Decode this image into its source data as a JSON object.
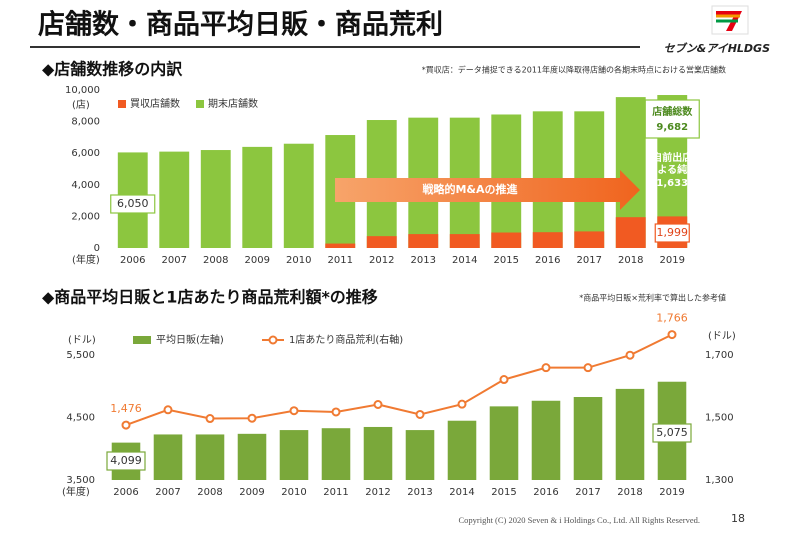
{
  "header": {
    "title": "店舗数・商品平均日販・商品荒利",
    "logo": "セブン&アイHLDGS"
  },
  "chart_data": [
    {
      "type": "bar",
      "title": "◆店舗数推移の内訳",
      "note": "*買収店：データ捕捉できる2011年度以降取得店舗の各期末時点における営業店舗数",
      "y_unit": "(店)",
      "x_unit": "(年度)",
      "categories": [
        "2006",
        "2007",
        "2008",
        "2009",
        "2010",
        "2011",
        "2012",
        "2013",
        "2014",
        "2015",
        "2016",
        "2017",
        "2018",
        "2019"
      ],
      "series": [
        {
          "name": "買収店舗数",
          "color": "#f15a22",
          "values": [
            0,
            0,
            0,
            0,
            0,
            280,
            750,
            880,
            880,
            980,
            1000,
            1050,
            1950,
            1999
          ],
          "value_labels": [
            null,
            null,
            null,
            null,
            null,
            null,
            null,
            null,
            null,
            null,
            null,
            null,
            null,
            "1,999"
          ]
        },
        {
          "name": "期末店舗数",
          "color": "#8cc63f",
          "values": [
            6050,
            6100,
            6200,
            6400,
            6600,
            7150,
            8100,
            8250,
            8250,
            8450,
            8650,
            8650,
            9550,
            9682
          ],
          "value_labels": [
            "6,050",
            null,
            null,
            null,
            null,
            null,
            null,
            null,
            null,
            null,
            null,
            null,
            null,
            "9,682"
          ]
        }
      ],
      "ylim": [
        0,
        10000
      ],
      "yticks": [
        0,
        {
          "value": 2000,
          "label": "2,000"
        },
        {
          "value": 4000,
          "label": "4,000"
        },
        {
          "value": 6000,
          "label": "6,000"
        },
        {
          "value": 8000,
          "label": "8,000"
        },
        {
          "value": 10000,
          "label": "10,000"
        }
      ],
      "grid": false,
      "annotations": {
        "arrow": "戦略的M&Aの推進",
        "total": "店舗総数",
        "net_increase": [
          "自前出店",
          "による純増"
        ],
        "net_increase_value": 1633,
        "net_increase_label": "1,633"
      }
    },
    {
      "type": "combo",
      "title": "◆商品平均日販と1店あたり商品荒利額*の推移",
      "note": "*商品平均日販×荒利率で算出した参考値",
      "y_unit": "(ドル)",
      "y2_unit": "(ドル)",
      "x_unit": "(年度)",
      "categories": [
        "2006",
        "2007",
        "2008",
        "2009",
        "2010",
        "2011",
        "2012",
        "2013",
        "2014",
        "2015",
        "2016",
        "2017",
        "2018",
        "2019"
      ],
      "series": [
        {
          "name": "平均日販(左軸)",
          "kind": "bar",
          "color": "#7aa83a",
          "values": [
            4099,
            4230,
            4230,
            4240,
            4300,
            4330,
            4350,
            4300,
            4450,
            4680,
            4770,
            4830,
            4960,
            5075
          ],
          "value_labels": [
            "4,099",
            null,
            null,
            null,
            null,
            null,
            null,
            null,
            null,
            null,
            null,
            null,
            null,
            "5,075"
          ]
        },
        {
          "name": "1店あたり商品荒利(右軸)",
          "kind": "line",
          "axis": "y2",
          "color": "#f07a32",
          "values": [
            1476,
            1525,
            1497,
            1498,
            1522,
            1518,
            1542,
            1510,
            1543,
            1622,
            1660,
            1660,
            1700,
            1766
          ],
          "value_labels": [
            "1,476",
            null,
            null,
            null,
            null,
            null,
            null,
            null,
            null,
            null,
            null,
            null,
            null,
            "1,766"
          ]
        }
      ],
      "ylim": [
        3500,
        6000
      ],
      "yticks": [
        {
          "value": 3500,
          "label": "3,500"
        },
        {
          "value": 4500,
          "label": "4,500"
        },
        {
          "value": 5500,
          "label": "5,500"
        }
      ],
      "y2lim": [
        1300,
        1800
      ],
      "y2ticks": [
        {
          "value": 1300,
          "label": "1,300"
        },
        {
          "value": 1500,
          "label": "1,500"
        },
        {
          "value": 1700,
          "label": "1,700"
        }
      ],
      "grid": false
    }
  ],
  "footer": {
    "copyright": "Copyright (C) 2020 Seven & i Holdings Co., Ltd. All Rights Reserved.",
    "page": 18
  }
}
